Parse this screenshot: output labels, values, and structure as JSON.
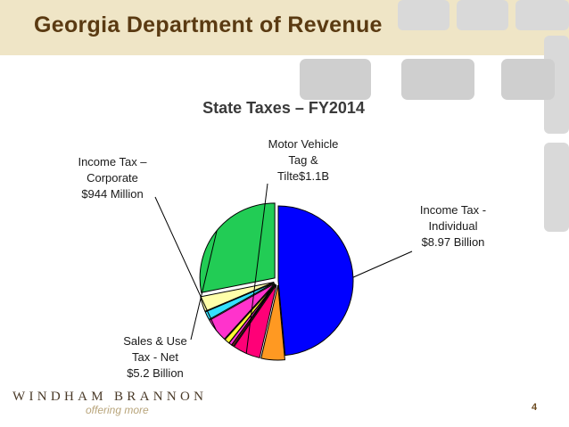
{
  "header": {
    "title": "Georgia Department of Revenue"
  },
  "chart_data": {
    "type": "pie",
    "title": "State Taxes – FY2014",
    "slices": [
      {
        "label": "Income Tax - Individual $8.97 Billion",
        "value": 8.97,
        "color": "#0000ff"
      },
      {
        "label": "",
        "value": 0.94,
        "color": "#ff9922"
      },
      {
        "label": "Motor Vehicle Tag & Tilte$1.1B",
        "value": 1.1,
        "color": "#ff0077"
      },
      {
        "label": "",
        "value": 0.08,
        "color": "#882222"
      },
      {
        "label": "",
        "value": 0.12,
        "color": "#ff33dd"
      },
      {
        "label": "",
        "value": 0.2,
        "color": "#ffff33"
      },
      {
        "label": "Income Tax – Corporate $944 Million",
        "value": 0.944,
        "color": "#ff33cc"
      },
      {
        "label": "",
        "value": 0.33,
        "color": "#33e0ff"
      },
      {
        "label": "",
        "value": 0.6,
        "color": "#ffffaa"
      },
      {
        "label": "Sales & Use Tax - Net $5.2 Billion",
        "value": 5.2,
        "color": "#22cc55"
      }
    ],
    "labels": [
      {
        "lines": [
          "Income Tax -",
          "Individual",
          "$8.97 Billion"
        ],
        "slice": 0
      },
      {
        "lines": [
          "Motor Vehicle",
          "Tag &",
          "Tilte$1.1B"
        ],
        "slice": 2
      },
      {
        "lines": [
          "Income Tax –",
          "Corporate",
          "$944 Million"
        ],
        "slice": 6
      },
      {
        "lines": [
          "Sales & Use",
          "Tax - Net",
          "$5.2 Billion"
        ],
        "slice": 9
      }
    ]
  },
  "footer": {
    "logo": "WINDHAM BRANNON",
    "tagline": "offering more",
    "page_number": "4"
  }
}
